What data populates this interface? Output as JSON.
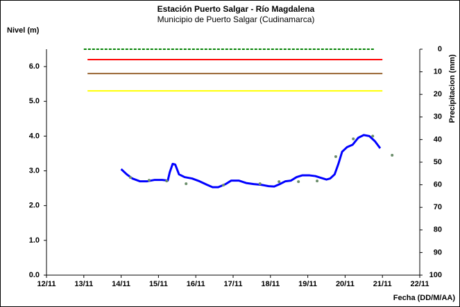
{
  "chart_data": {
    "type": "line",
    "title": "Estación Puerto Salgar - Río Magdalena",
    "subtitle": "Municipio de Puerto Salgar (Cudinamarca)",
    "ylabel": "Nivel (m)",
    "y2label": "Precipitacion (mm)",
    "xlabel": "Fecha (DD/M/AA)",
    "xlim": [
      0,
      10
    ],
    "xticks": [
      {
        "value": 0,
        "label": "12/11"
      },
      {
        "value": 1,
        "label": "13/11"
      },
      {
        "value": 2,
        "label": "14/11"
      },
      {
        "value": 3,
        "label": "15/11"
      },
      {
        "value": 4,
        "label": "16/11"
      },
      {
        "value": 5,
        "label": "17/11"
      },
      {
        "value": 6,
        "label": "18/11"
      },
      {
        "value": 7,
        "label": "19/11"
      },
      {
        "value": 8,
        "label": "20/11"
      },
      {
        "value": 9,
        "label": "21/11"
      },
      {
        "value": 10,
        "label": "22/11"
      }
    ],
    "ylim": [
      0,
      6.5
    ],
    "yticks": [
      {
        "value": 0,
        "label": "0.0"
      },
      {
        "value": 1,
        "label": "1.0"
      },
      {
        "value": 2,
        "label": "2.0"
      },
      {
        "value": 3,
        "label": "3.0"
      },
      {
        "value": 4,
        "label": "4.0"
      },
      {
        "value": 5,
        "label": "5.0"
      },
      {
        "value": 6,
        "label": "6.0"
      }
    ],
    "y2lim": [
      100,
      0
    ],
    "y2ticks": [
      0,
      10,
      20,
      30,
      40,
      50,
      60,
      70,
      80,
      90,
      100
    ],
    "series": [
      {
        "color": "#008000",
        "dashed": true,
        "x": [
          1.0,
          8.8
        ],
        "values": [
          6.5,
          6.5
        ]
      },
      {
        "color": "#ff0000",
        "x": [
          1.1,
          9.0
        ],
        "values": [
          6.2,
          6.2
        ]
      },
      {
        "color": "#996633",
        "x": [
          1.1,
          9.0
        ],
        "values": [
          5.8,
          5.8
        ]
      },
      {
        "color": "#ffff00",
        "x": [
          1.1,
          9.0
        ],
        "values": [
          5.3,
          5.3
        ]
      },
      {
        "color": "#0000ff",
        "width": 3,
        "x": [
          2.0,
          2.15,
          2.3,
          2.5,
          2.7,
          2.9,
          3.1,
          3.25,
          3.3,
          3.38,
          3.45,
          3.55,
          3.7,
          3.9,
          4.1,
          4.3,
          4.45,
          4.6,
          4.8,
          4.95,
          5.15,
          5.35,
          5.55,
          5.75,
          5.95,
          6.1,
          6.25,
          6.4,
          6.55,
          6.7,
          6.85,
          7.05,
          7.2,
          7.35,
          7.5,
          7.6,
          7.72,
          7.82,
          7.92,
          8.05,
          8.2,
          8.35,
          8.5,
          8.65,
          8.8,
          8.94
        ],
        "values": [
          3.05,
          2.9,
          2.78,
          2.7,
          2.7,
          2.74,
          2.74,
          2.72,
          2.95,
          3.2,
          3.18,
          2.9,
          2.82,
          2.78,
          2.7,
          2.6,
          2.53,
          2.53,
          2.62,
          2.72,
          2.72,
          2.65,
          2.62,
          2.6,
          2.56,
          2.55,
          2.62,
          2.7,
          2.72,
          2.82,
          2.87,
          2.87,
          2.85,
          2.8,
          2.75,
          2.78,
          2.9,
          3.2,
          3.55,
          3.68,
          3.75,
          3.95,
          4.03,
          4.0,
          3.85,
          3.65
        ]
      },
      {
        "color": "#6b8e6b",
        "markers": true,
        "x": [
          2.25,
          2.75,
          3.22,
          3.74,
          4.74,
          5.72,
          6.23,
          6.75,
          7.25,
          7.75,
          8.22,
          8.74,
          9.26
        ],
        "values": [
          2.81,
          2.73,
          2.71,
          2.63,
          2.59,
          2.63,
          2.69,
          2.69,
          2.71,
          3.41,
          3.92,
          4.0,
          3.45
        ]
      }
    ]
  }
}
